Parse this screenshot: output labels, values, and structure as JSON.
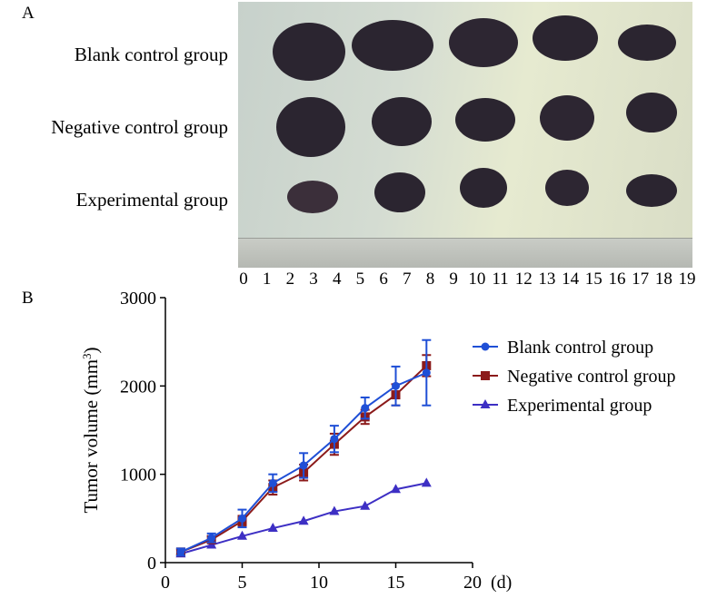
{
  "panel_a": {
    "letter": "A",
    "groups": [
      "Blank control group",
      "Negative control group",
      "Experimental group"
    ],
    "ruler_numbers": [
      "0",
      "1",
      "2",
      "3",
      "4",
      "5",
      "6",
      "7",
      "8",
      "9",
      "10",
      "11",
      "12",
      "13",
      "14",
      "15",
      "16",
      "17",
      "18",
      "19"
    ],
    "colors": {
      "tumor": "#2b2530",
      "background": "#d4dcd2"
    }
  },
  "panel_b": {
    "letter": "B",
    "x_unit": "(d)"
  },
  "chart_data": {
    "type": "line",
    "ylabel_main": "Tumor volume (mm",
    "ylabel_sup": "3",
    "ylabel_tail": ")",
    "xlim": [
      0,
      20
    ],
    "ylim": [
      0,
      3000
    ],
    "xticks": [
      "0",
      "5",
      "10",
      "15",
      "20"
    ],
    "yticks": [
      "0",
      "1000",
      "2000",
      "3000"
    ],
    "legend_position": "right",
    "series": [
      {
        "name": "Blank control group",
        "color": "#1f4fd6",
        "marker": "circle",
        "x": [
          1,
          3,
          5,
          7,
          9,
          11,
          13,
          15,
          17
        ],
        "y": [
          120,
          280,
          500,
          900,
          1100,
          1400,
          1750,
          2000,
          2150
        ],
        "err": [
          40,
          50,
          100,
          100,
          140,
          150,
          120,
          220,
          370
        ]
      },
      {
        "name": "Negative control group",
        "color": "#8b1a1a",
        "marker": "square",
        "x": [
          1,
          3,
          5,
          7,
          9,
          11,
          13,
          15,
          17
        ],
        "y": [
          120,
          260,
          470,
          850,
          1020,
          1340,
          1650,
          1900,
          2230
        ],
        "err": [
          30,
          40,
          60,
          80,
          90,
          120,
          80,
          120,
          120
        ]
      },
      {
        "name": "Experimental group",
        "color": "#3d2fc4",
        "marker": "triangle",
        "x": [
          1,
          3,
          5,
          7,
          9,
          11,
          13,
          15,
          17
        ],
        "y": [
          100,
          200,
          300,
          390,
          470,
          580,
          640,
          830,
          900
        ],
        "err": [
          0,
          0,
          0,
          0,
          0,
          0,
          0,
          0,
          0
        ]
      }
    ]
  }
}
